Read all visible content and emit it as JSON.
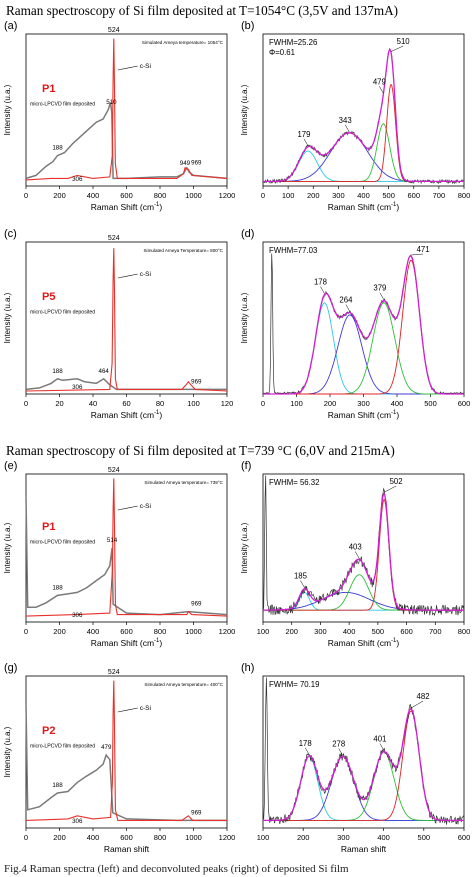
{
  "headings": {
    "top": "Raman spectroscopy of Si film deposited at T=1054°C (3,5V and 137mA)",
    "middle": "Raman spectroscopy of Si film deposited at T=739 °C (6,0V and 215mA)"
  },
  "footer": "Fig.4 Raman spectra (left) and deconvoluted peaks (right) of deposited Si film",
  "colors": {
    "sample": "#7a7a7a",
    "csi": "#e8312a",
    "fit": "#d020d0",
    "peak_cyan": "#2ec8e6",
    "peak_blue": "#3b3bd8",
    "peak_green": "#2fbf3a",
    "peak_red": "#e02020",
    "marker": "#e01818"
  },
  "panels": [
    {
      "id": "a",
      "label": "(a)",
      "kind": "raw",
      "ylabel": "Intensity (u.a.)",
      "xlabel_text": "Raman Shift (cm",
      "xlabel_sup": "-1",
      "xlabel_end": ")",
      "temperature_note": "Simulated Ameya temperature= 1054°C",
      "marker_label": "P1",
      "deposit_label": "micro-LPCVD film deposited",
      "csi_label": "c-Si",
      "ticks": [
        "0",
        "200",
        "400",
        "600",
        "800",
        "1000",
        "1200"
      ],
      "peak_labels": [
        "188",
        "306",
        "510",
        "524",
        "949",
        "969"
      ],
      "chart_data": {
        "type": "line",
        "xlim": [
          0,
          1200
        ],
        "ylim": [
          0,
          1
        ],
        "series": [
          {
            "points": [
              [
                0,
                0.05
              ],
              [
                60,
                0.07
              ],
              [
                120,
                0.13
              ],
              [
                160,
                0.16
              ],
              [
                188,
                0.2
              ],
              [
                230,
                0.22
              ],
              [
                280,
                0.28
              ],
              [
                330,
                0.33
              ],
              [
                380,
                0.38
              ],
              [
                420,
                0.42
              ],
              [
                460,
                0.44
              ],
              [
                490,
                0.5
              ],
              [
                505,
                0.55
              ],
              [
                512,
                0.48
              ],
              [
                520,
                0.05
              ],
              [
                600,
                0.05
              ],
              [
                800,
                0.06
              ],
              [
                900,
                0.06
              ],
              [
                940,
                0.08
              ],
              [
                960,
                0.12
              ],
              [
                975,
                0.09
              ],
              [
                1000,
                0.07
              ],
              [
                1100,
                0.06
              ],
              [
                1200,
                0.05
              ]
            ]
          },
          {
            "points": [
              [
                0,
                0.04
              ],
              [
                150,
                0.05
              ],
              [
                250,
                0.05
              ],
              [
                306,
                0.07
              ],
              [
                400,
                0.05
              ],
              [
                500,
                0.06
              ],
              [
                515,
                0.2
              ],
              [
                520,
                0.7
              ],
              [
                524,
                0.97
              ],
              [
                528,
                0.7
              ],
              [
                533,
                0.15
              ],
              [
                545,
                0.05
              ],
              [
                900,
                0.05
              ],
              [
                940,
                0.08
              ],
              [
                949,
                0.12
              ],
              [
                969,
                0.11
              ],
              [
                990,
                0.07
              ],
              [
                1200,
                0.05
              ]
            ]
          }
        ]
      }
    },
    {
      "id": "b",
      "label": "(b)",
      "kind": "fit",
      "ylabel": "Intensity (u.a.)",
      "xlabel_text": "Raman Shift (cm",
      "xlabel_sup": "-1",
      "xlabel_end": ")",
      "info_lines": [
        "FWHM=25.26",
        "Φ=0.61"
      ],
      "ticks": [
        "0",
        "100",
        "200",
        "300",
        "400",
        "500",
        "600",
        "700",
        "800"
      ],
      "peak_labels": [
        "179",
        "343",
        "479",
        "510"
      ],
      "chart_data": {
        "type": "line",
        "xlim": [
          0,
          800
        ],
        "ylim": [
          0,
          1
        ],
        "peaks": [
          {
            "center": 179,
            "height": 0.2,
            "width": 55,
            "color": "cyan"
          },
          {
            "center": 343,
            "height": 0.32,
            "width": 110,
            "color": "blue"
          },
          {
            "center": 479,
            "height": 0.38,
            "width": 38,
            "color": "green"
          },
          {
            "center": 510,
            "height": 0.64,
            "width": 26,
            "color": "red"
          }
        ],
        "baseline": 0.03
      }
    },
    {
      "id": "c",
      "label": "(c)",
      "kind": "raw",
      "ylabel": "Intensity (u.a.)",
      "xlabel_text": "Raman Shift (cm",
      "xlabel_sup": "-1",
      "xlabel_end": ")",
      "temperature_note": "Simulated Ameya Temperature= 800°C",
      "marker_label": "P5",
      "deposit_label": "micro-LPCVD film deposited",
      "csi_label": "c-Si",
      "ticks": [
        "0",
        "20",
        "40",
        "60",
        "80",
        "100",
        "120"
      ],
      "peak_labels": [
        "188",
        "306",
        "464",
        "524",
        "969"
      ],
      "chart_data": {
        "type": "line",
        "xlim": [
          0,
          1200
        ],
        "ylim": [
          0,
          1
        ],
        "series": [
          {
            "points": [
              [
                0,
                0.03
              ],
              [
                80,
                0.04
              ],
              [
                150,
                0.07
              ],
              [
                188,
                0.1
              ],
              [
                220,
                0.09
              ],
              [
                306,
                0.1
              ],
              [
                350,
                0.08
              ],
              [
                420,
                0.07
              ],
              [
                464,
                0.1
              ],
              [
                500,
                0.06
              ],
              [
                540,
                0.03
              ],
              [
                900,
                0.03
              ],
              [
                1200,
                0.03
              ]
            ]
          },
          {
            "points": [
              [
                0,
                0.02
              ],
              [
                500,
                0.03
              ],
              [
                514,
                0.2
              ],
              [
                520,
                0.75
              ],
              [
                524,
                0.96
              ],
              [
                528,
                0.72
              ],
              [
                534,
                0.1
              ],
              [
                545,
                0.03
              ],
              [
                930,
                0.03
              ],
              [
                955,
                0.06
              ],
              [
                969,
                0.08
              ],
              [
                985,
                0.06
              ],
              [
                1010,
                0.03
              ],
              [
                1200,
                0.02
              ]
            ]
          }
        ]
      }
    },
    {
      "id": "d",
      "label": "(d)",
      "kind": "fit",
      "ylabel": "Intensity (u.a.)",
      "xlabel_text": "Raman Shift (cm",
      "xlabel_sup": "-1",
      "xlabel_end": ")",
      "info_lines": [
        "FWHM=77.03"
      ],
      "ticks": [
        "0",
        "100",
        "200",
        "300",
        "400",
        "500",
        "600"
      ],
      "peak_labels": [
        "178",
        "264",
        "379",
        "471"
      ],
      "chart_data": {
        "type": "line",
        "xlim": [
          -30,
          650
        ],
        "ylim": [
          0,
          1
        ],
        "peaks": [
          {
            "center": 178,
            "height": 0.6,
            "width": 45,
            "color": "cyan"
          },
          {
            "center": 264,
            "height": 0.52,
            "width": 60,
            "color": "blue"
          },
          {
            "center": 379,
            "height": 0.6,
            "width": 55,
            "color": "green"
          },
          {
            "center": 471,
            "height": 0.88,
            "width": 42,
            "color": "red"
          }
        ],
        "laser_line": 0,
        "baseline": 0.0
      }
    },
    {
      "id": "e",
      "label": "(e)",
      "kind": "raw",
      "ylabel": "Intensity (u.a.)",
      "xlabel_text": "Raman Shift (cm",
      "xlabel_sup": "-1",
      "xlabel_end": ")",
      "temperature_note": "Simulated Ameya temperature= 739°C",
      "marker_label": "P1",
      "deposit_label": "micro-LPCVD film deposited",
      "csi_label": "c-Si",
      "ticks": [
        "0",
        "200",
        "400",
        "600",
        "800",
        "1000",
        "1200"
      ],
      "peak_labels": [
        "188",
        "306",
        "514",
        "524",
        "969"
      ],
      "chart_data": {
        "type": "line",
        "xlim": [
          0,
          1200
        ],
        "ylim": [
          0,
          1
        ],
        "series": [
          {
            "points": [
              [
                0,
                0.85
              ],
              [
                10,
                0.1
              ],
              [
                60,
                0.1
              ],
              [
                120,
                0.13
              ],
              [
                188,
                0.18
              ],
              [
                250,
                0.19
              ],
              [
                306,
                0.2
              ],
              [
                360,
                0.23
              ],
              [
                420,
                0.28
              ],
              [
                470,
                0.32
              ],
              [
                500,
                0.38
              ],
              [
                514,
                0.5
              ],
              [
                520,
                0.12
              ],
              [
                600,
                0.06
              ],
              [
                800,
                0.05
              ],
              [
                969,
                0.07
              ],
              [
                1200,
                0.05
              ]
            ]
          },
          {
            "points": [
              [
                0,
                0.04
              ],
              [
                300,
                0.05
              ],
              [
                500,
                0.06
              ],
              [
                516,
                0.35
              ],
              [
                520,
                0.75
              ],
              [
                524,
                0.97
              ],
              [
                528,
                0.7
              ],
              [
                534,
                0.12
              ],
              [
                545,
                0.05
              ],
              [
                960,
                0.05
              ],
              [
                969,
                0.07
              ],
              [
                990,
                0.05
              ],
              [
                1200,
                0.04
              ]
            ]
          }
        ]
      }
    },
    {
      "id": "f",
      "label": "(f)",
      "kind": "fit",
      "ylabel": "Intensity (u.a.)",
      "xlabel_text": "Raman Shift (cm",
      "xlabel_sup": "-1",
      "xlabel_end": ")",
      "info_lines": [
        "FWHM= 56.32"
      ],
      "ticks": [
        "100",
        "200",
        "300",
        "400",
        "500",
        "600",
        "700",
        "800"
      ],
      "peak_labels": [
        "185",
        "403",
        "502"
      ],
      "chart_data": {
        "type": "line",
        "xlim": [
          20,
          820
        ],
        "ylim": [
          0,
          1
        ],
        "peaks": [
          {
            "center": 185,
            "height": 0.12,
            "width": 30,
            "color": "cyan"
          },
          {
            "center": 350,
            "height": 0.12,
            "width": 140,
            "color": "blue"
          },
          {
            "center": 403,
            "height": 0.24,
            "width": 55,
            "color": "green"
          },
          {
            "center": 502,
            "height": 0.75,
            "width": 28,
            "color": "red"
          }
        ],
        "laser_line": 30,
        "baseline": 0.08,
        "noise": 0.07
      }
    },
    {
      "id": "g",
      "label": "(g)",
      "kind": "raw",
      "ylabel": "Intensity (u.a.)",
      "xlabel_text": "Raman shift",
      "xlabel_sup": "",
      "xlabel_end": "",
      "temperature_note": "Simulated Ameya temperature= 400°C",
      "marker_label": "P2",
      "deposit_label": "micro-LPCVD film deposited",
      "csi_label": "c-Si",
      "ticks": [
        "0",
        "200",
        "400",
        "600",
        "800",
        "1000",
        "1200"
      ],
      "peak_labels": [
        "188",
        "306",
        "479",
        "524",
        "969"
      ],
      "chart_data": {
        "type": "line",
        "xlim": [
          0,
          1200
        ],
        "ylim": [
          0,
          1
        ],
        "series": [
          {
            "points": [
              [
                0,
                0.82
              ],
              [
                10,
                0.12
              ],
              [
                80,
                0.14
              ],
              [
                150,
                0.2
              ],
              [
                188,
                0.23
              ],
              [
                250,
                0.24
              ],
              [
                306,
                0.3
              ],
              [
                360,
                0.34
              ],
              [
                420,
                0.38
              ],
              [
                460,
                0.42
              ],
              [
                479,
                0.48
              ],
              [
                500,
                0.45
              ],
              [
                518,
                0.1
              ],
              [
                600,
                0.06
              ],
              [
                900,
                0.05
              ],
              [
                1200,
                0.05
              ]
            ]
          },
          {
            "points": [
              [
                0,
                0.05
              ],
              [
                250,
                0.06
              ],
              [
                306,
                0.08
              ],
              [
                400,
                0.06
              ],
              [
                505,
                0.07
              ],
              [
                516,
                0.3
              ],
              [
                520,
                0.75
              ],
              [
                524,
                0.97
              ],
              [
                528,
                0.72
              ],
              [
                534,
                0.12
              ],
              [
                548,
                0.05
              ],
              [
                930,
                0.05
              ],
              [
                969,
                0.08
              ],
              [
                995,
                0.05
              ],
              [
                1200,
                0.05
              ]
            ]
          }
        ]
      }
    },
    {
      "id": "h",
      "label": "(h)",
      "kind": "fit",
      "ylabel": "",
      "xlabel_text": "Raman shift",
      "xlabel_sup": "",
      "xlabel_end": "",
      "info_lines": [
        "FWHM= 70.19"
      ],
      "ticks": [
        "100",
        "200",
        "300",
        "400",
        "500",
        "600"
      ],
      "peak_labels": [
        "178",
        "278",
        "401",
        "482"
      ],
      "chart_data": {
        "type": "line",
        "xlim": [
          40,
          640
        ],
        "ylim": [
          0,
          1
        ],
        "peaks": [
          {
            "center": 178,
            "height": 0.42,
            "width": 38,
            "color": "cyan"
          },
          {
            "center": 278,
            "height": 0.42,
            "width": 50,
            "color": "blue"
          },
          {
            "center": 401,
            "height": 0.45,
            "width": 45,
            "color": "green"
          },
          {
            "center": 482,
            "height": 0.72,
            "width": 36,
            "color": "red"
          }
        ],
        "laser_line": 50,
        "baseline": 0.05,
        "noise": 0.06
      }
    }
  ]
}
